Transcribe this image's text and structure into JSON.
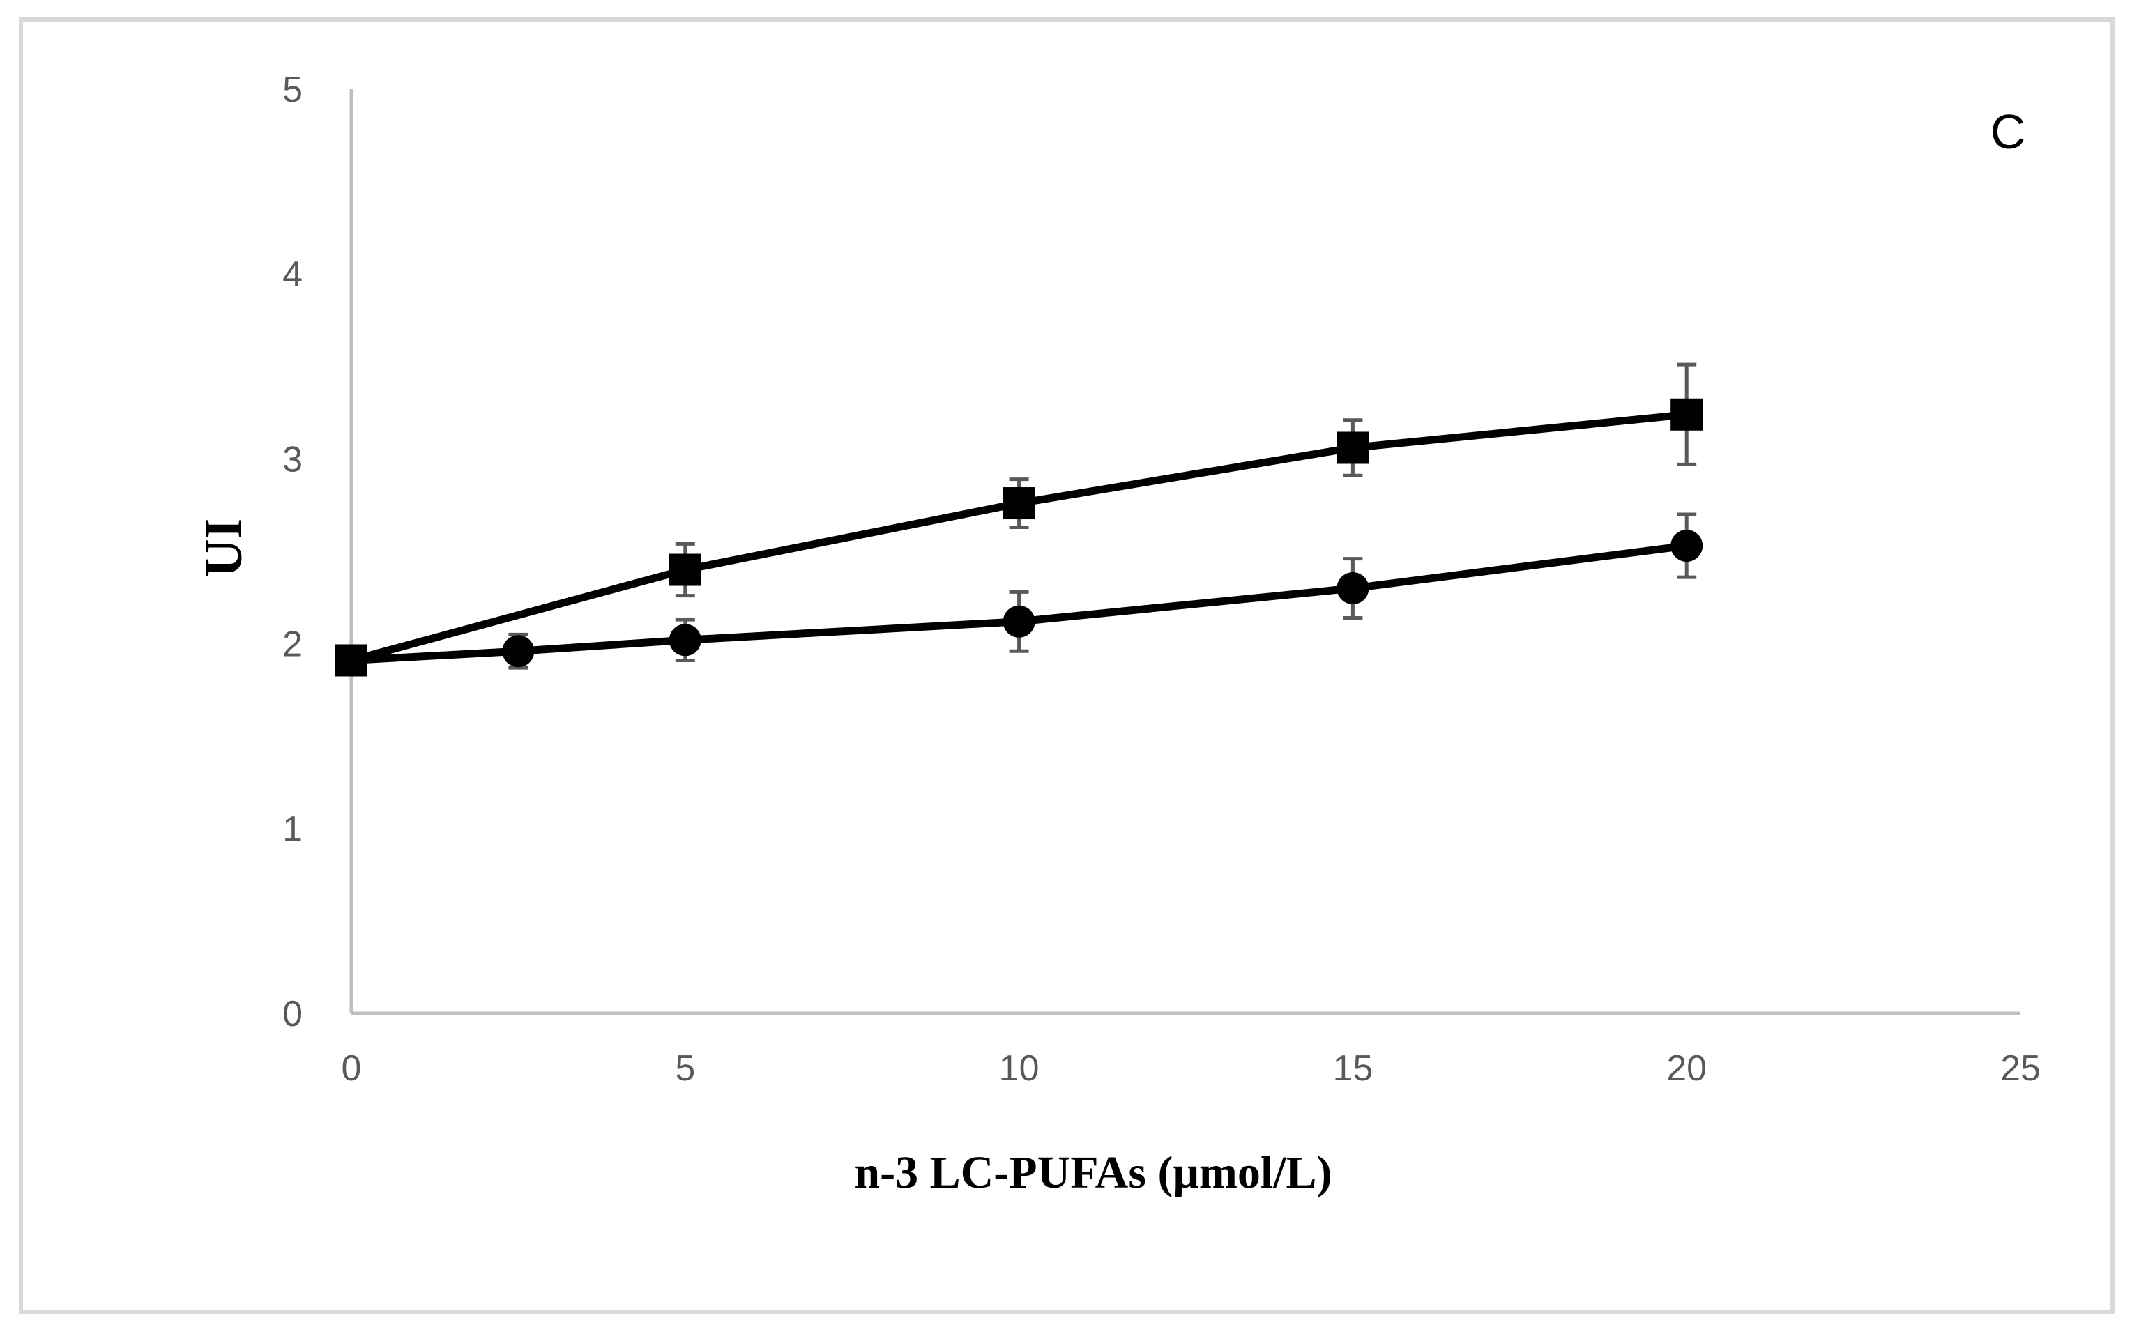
{
  "chart_data": {
    "type": "line",
    "title": "",
    "panel_label": "C",
    "xlabel": "n-3 LC-PUFAs (μmol/L)",
    "ylabel": "UI",
    "xlim": [
      0,
      25
    ],
    "ylim": [
      0,
      5
    ],
    "x_ticks": [
      0,
      5,
      10,
      15,
      20,
      25
    ],
    "y_ticks": [
      0,
      1,
      2,
      3,
      4,
      5
    ],
    "grid": false,
    "legend": "none",
    "series": [
      {
        "name": "square-series",
        "marker": "square",
        "color": "#000000",
        "x": [
          0,
          5,
          10,
          15,
          20
        ],
        "values": [
          1.91,
          2.4,
          2.76,
          3.06,
          3.24
        ],
        "error": [
          0.07,
          0.14,
          0.13,
          0.15,
          0.27
        ]
      },
      {
        "name": "circle-series",
        "marker": "circle",
        "color": "#000000",
        "x": [
          0,
          2.5,
          5,
          10,
          15,
          20
        ],
        "values": [
          1.91,
          1.96,
          2.02,
          2.12,
          2.3,
          2.53
        ],
        "error": [
          0.07,
          0.09,
          0.11,
          0.16,
          0.16,
          0.17
        ]
      }
    ],
    "colors": {
      "axis": "#bfbfbf",
      "frame": "#d9d9d9",
      "error_bar": "#595959",
      "line": "#000000"
    }
  }
}
